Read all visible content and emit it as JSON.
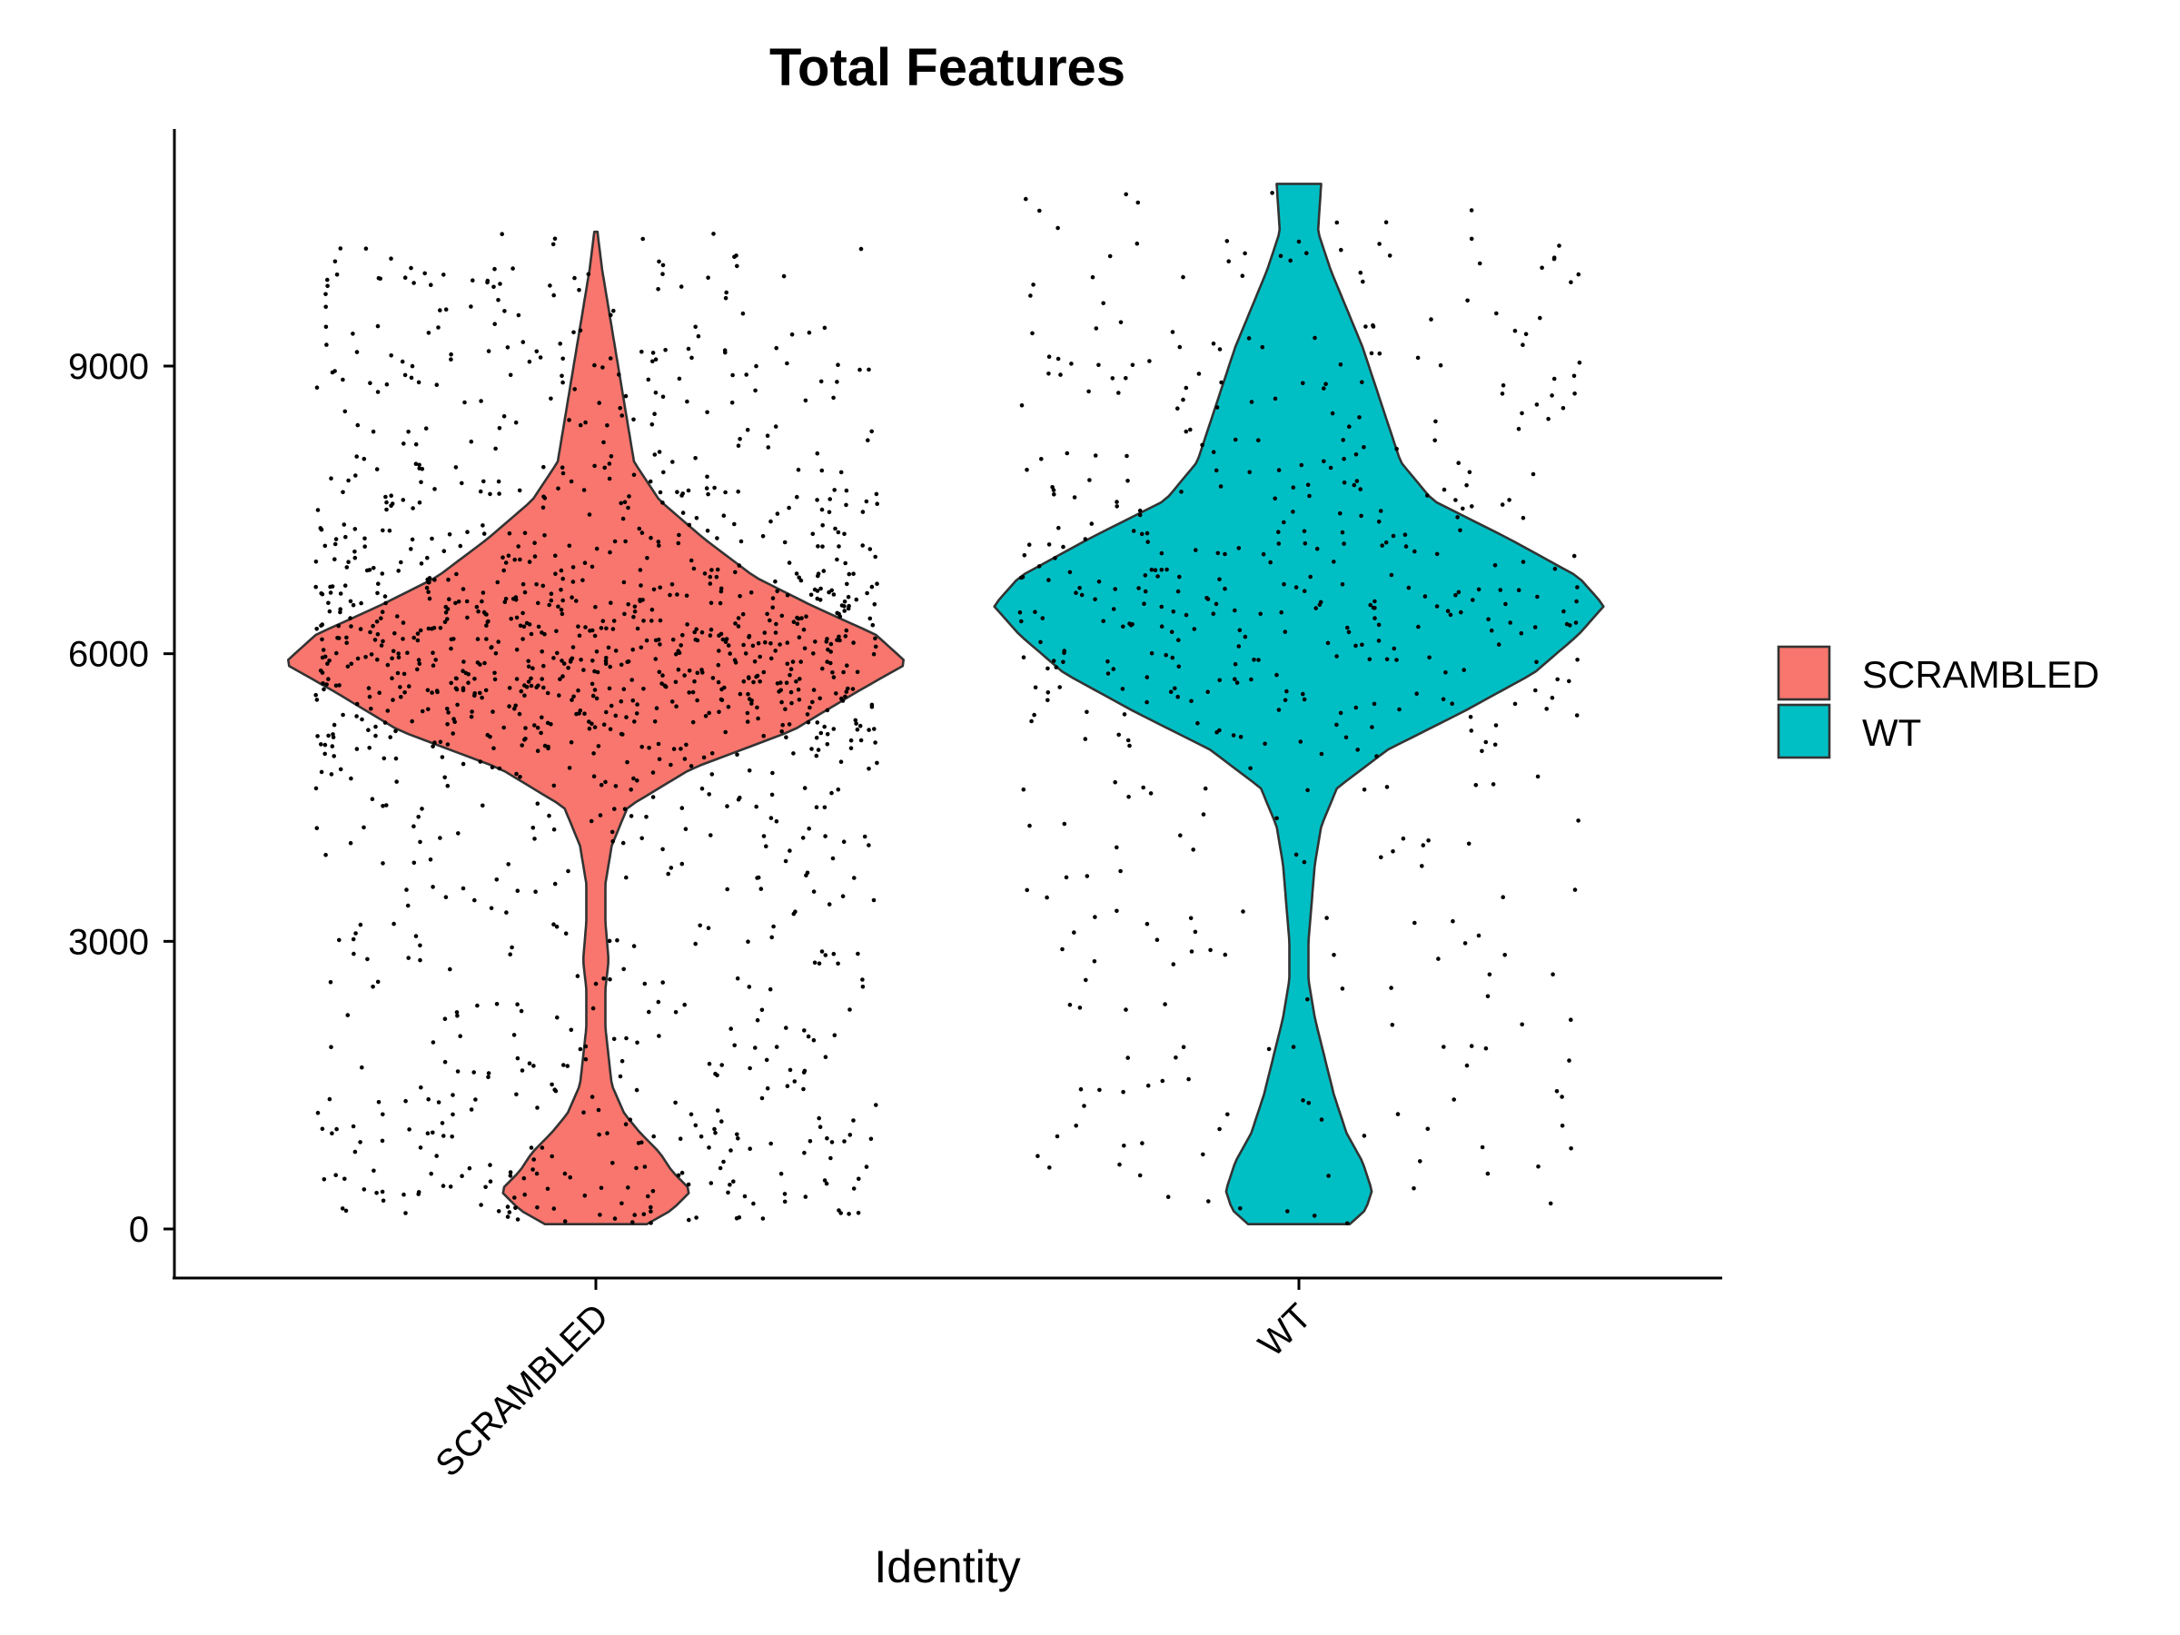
{
  "chart_data": {
    "type": "violin",
    "title": "Total Features",
    "xlabel": "Identity",
    "ylabel": "",
    "ylim": [
      -550,
      12700
    ],
    "y_ticks": [
      0,
      3000,
      6000,
      9000
    ],
    "y_tick_labels": [
      "0",
      "3000",
      "6000",
      "9000"
    ],
    "categories": [
      "SCRAMBLED",
      "WT"
    ],
    "legend": {
      "position": "right",
      "entries": [
        {
          "label": "SCRAMBLED",
          "color": "#F8766D"
        },
        {
          "label": "WT",
          "color": "#00BFC4"
        }
      ]
    },
    "series": [
      {
        "name": "SCRAMBLED",
        "color": "#F8766D",
        "min": 50,
        "max": 10400,
        "approx_cells": 1400,
        "density_profile": [
          [
            50,
            0.16
          ],
          [
            200,
            0.24
          ],
          [
            400,
            0.3
          ],
          [
            600,
            0.24
          ],
          [
            800,
            0.2
          ],
          [
            1000,
            0.14
          ],
          [
            1200,
            0.09
          ],
          [
            1500,
            0.05
          ],
          [
            1800,
            0.04
          ],
          [
            2100,
            0.03
          ],
          [
            2500,
            0.03
          ],
          [
            2800,
            0.04
          ],
          [
            3200,
            0.03
          ],
          [
            3600,
            0.03
          ],
          [
            4000,
            0.05
          ],
          [
            4400,
            0.1
          ],
          [
            4800,
            0.3
          ],
          [
            5200,
            0.62
          ],
          [
            5600,
            0.82
          ],
          [
            5900,
            0.98
          ],
          [
            6200,
            0.88
          ],
          [
            6500,
            0.68
          ],
          [
            6800,
            0.5
          ],
          [
            7200,
            0.34
          ],
          [
            7600,
            0.2
          ],
          [
            8000,
            0.12
          ],
          [
            8400,
            0.1
          ],
          [
            8800,
            0.08
          ],
          [
            9200,
            0.06
          ],
          [
            9600,
            0.04
          ],
          [
            10000,
            0.02
          ],
          [
            10400,
            0.005
          ]
        ]
      },
      {
        "name": "WT",
        "color": "#00BFC4",
        "min": 50,
        "max": 10900,
        "approx_cells": 520,
        "density_profile": [
          [
            50,
            0.16
          ],
          [
            200,
            0.21
          ],
          [
            400,
            0.23
          ],
          [
            700,
            0.2
          ],
          [
            1000,
            0.15
          ],
          [
            1400,
            0.11
          ],
          [
            1800,
            0.08
          ],
          [
            2200,
            0.05
          ],
          [
            2600,
            0.03
          ],
          [
            3000,
            0.03
          ],
          [
            3400,
            0.04
          ],
          [
            3800,
            0.05
          ],
          [
            4200,
            0.07
          ],
          [
            4600,
            0.12
          ],
          [
            5000,
            0.28
          ],
          [
            5400,
            0.52
          ],
          [
            5800,
            0.74
          ],
          [
            6200,
            0.88
          ],
          [
            6500,
            0.96
          ],
          [
            6800,
            0.88
          ],
          [
            7200,
            0.66
          ],
          [
            7600,
            0.42
          ],
          [
            8000,
            0.32
          ],
          [
            8400,
            0.28
          ],
          [
            8800,
            0.24
          ],
          [
            9200,
            0.2
          ],
          [
            9600,
            0.15
          ],
          [
            10000,
            0.1
          ],
          [
            10400,
            0.06
          ],
          [
            10900,
            0.07
          ]
        ]
      }
    ]
  }
}
